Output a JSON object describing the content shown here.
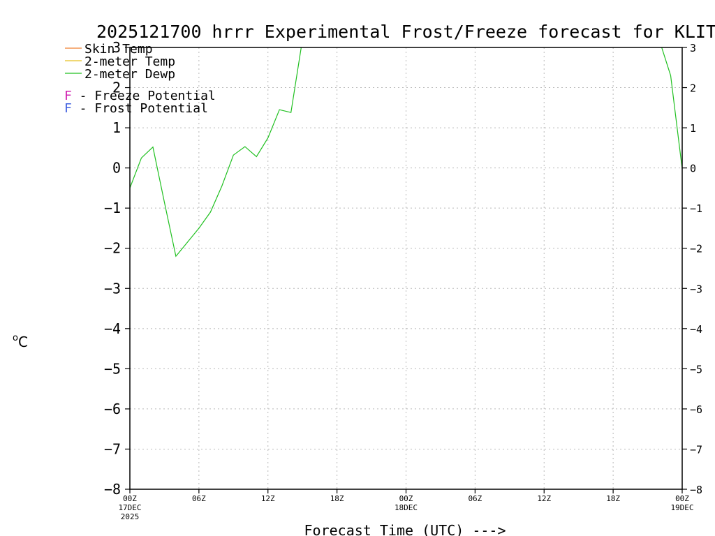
{
  "chart_data": {
    "type": "line",
    "title": "2025121700 hrrr Experimental Frost/Freeze forecast for KLIT",
    "ylabel_degree": "o",
    "ylabel_unit": "C",
    "xlabel": "Forecast Time (UTC) --->",
    "ylim": [
      -8,
      3
    ],
    "yticks": [
      3,
      2,
      1,
      0,
      -1,
      -2,
      -3,
      -4,
      -5,
      -6,
      -7,
      -8
    ],
    "ytick_labels": [
      "3",
      "2",
      "1",
      "0",
      "−1",
      "−2",
      "−3",
      "−4",
      "−5",
      "−6",
      "−7",
      "−8"
    ],
    "xlim_hours": [
      0,
      48
    ],
    "xticks": [
      {
        "hour": 0,
        "line1": "00Z",
        "line2": "17DEC",
        "line3": "2025"
      },
      {
        "hour": 6,
        "line1": "06Z",
        "line2": "",
        "line3": ""
      },
      {
        "hour": 12,
        "line1": "12Z",
        "line2": "",
        "line3": ""
      },
      {
        "hour": 18,
        "line1": "18Z",
        "line2": "",
        "line3": ""
      },
      {
        "hour": 24,
        "line1": "00Z",
        "line2": "18DEC",
        "line3": ""
      },
      {
        "hour": 30,
        "line1": "06Z",
        "line2": "",
        "line3": ""
      },
      {
        "hour": 36,
        "line1": "12Z",
        "line2": "",
        "line3": ""
      },
      {
        "hour": 42,
        "line1": "18Z",
        "line2": "",
        "line3": ""
      },
      {
        "hour": 48,
        "line1": "00Z",
        "line2": "19DEC",
        "line3": ""
      }
    ],
    "grid": true,
    "legend": {
      "placement": "top-left",
      "series_entries": [
        {
          "name": "Skin Temp",
          "color": "#f08030"
        },
        {
          "name": "2-meter Temp",
          "color": "#e8c020"
        },
        {
          "name": "2-meter Dewp",
          "color": "#20c020"
        }
      ],
      "flag_entries": [
        {
          "letter": "F",
          "text": " - Freeze Potential",
          "color": "#d020b0"
        },
        {
          "letter": "F",
          "text": " - Frost Potential",
          "color": "#4060e0"
        }
      ]
    },
    "series": [
      {
        "name": "2-meter Dewp",
        "color": "#20c020",
        "x_hours": [
          0,
          1,
          2,
          3,
          4,
          5,
          6,
          7,
          8,
          9,
          10,
          11,
          12,
          13,
          14,
          15,
          46,
          47,
          48
        ],
        "values": [
          -0.5,
          0.25,
          0.52,
          -0.85,
          -2.2,
          -1.85,
          -1.5,
          -1.1,
          -0.45,
          0.32,
          0.53,
          0.28,
          0.75,
          1.45,
          1.38,
          3.2,
          3.2,
          2.3,
          -0.02
        ]
      }
    ]
  }
}
